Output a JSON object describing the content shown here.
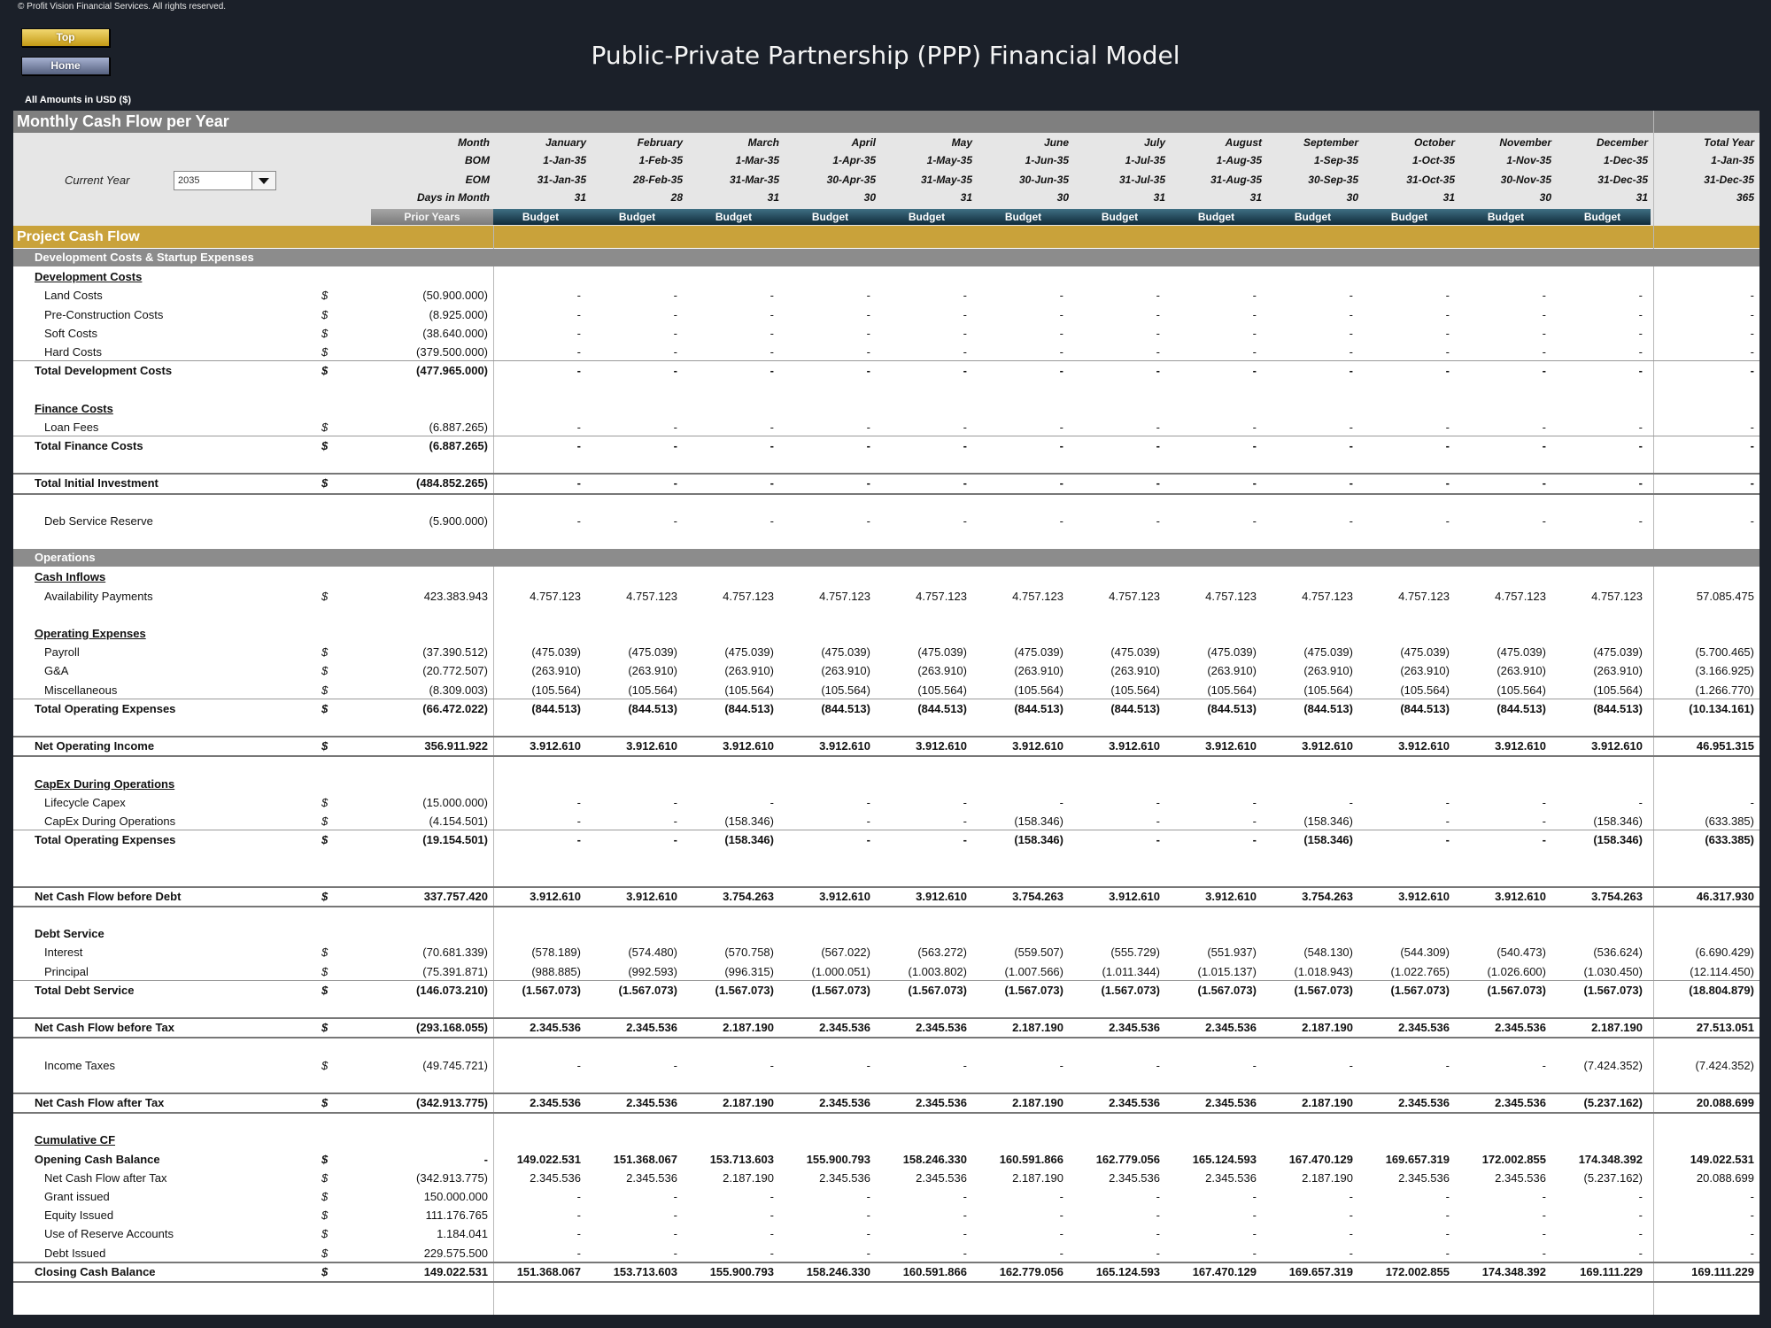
{
  "copyright": "© Profit Vision Financial Services. All rights reserved.",
  "nav": {
    "top_label": "Top",
    "home_label": "Home"
  },
  "title": "Public-Private Partnership (PPP) Financial Model",
  "amounts_note": "All Amounts in  USD ($)",
  "section_title": "Monthly Cash Flow per Year",
  "current_year_label": "Current Year",
  "current_year_value": "2035",
  "header_labels": [
    "Month",
    "BOM",
    "EOM",
    "Days in Month"
  ],
  "prior_years_label": "Prior Years",
  "months": [
    {
      "name": "January",
      "bom": "1-Jan-35",
      "eom": "31-Jan-35",
      "days": "31",
      "type": "Budget"
    },
    {
      "name": "February",
      "bom": "1-Feb-35",
      "eom": "28-Feb-35",
      "days": "28",
      "type": "Budget"
    },
    {
      "name": "March",
      "bom": "1-Mar-35",
      "eom": "31-Mar-35",
      "days": "31",
      "type": "Budget"
    },
    {
      "name": "April",
      "bom": "1-Apr-35",
      "eom": "30-Apr-35",
      "days": "30",
      "type": "Budget"
    },
    {
      "name": "May",
      "bom": "1-May-35",
      "eom": "31-May-35",
      "days": "31",
      "type": "Budget"
    },
    {
      "name": "June",
      "bom": "1-Jun-35",
      "eom": "30-Jun-35",
      "days": "30",
      "type": "Budget"
    },
    {
      "name": "July",
      "bom": "1-Jul-35",
      "eom": "31-Jul-35",
      "days": "31",
      "type": "Budget"
    },
    {
      "name": "August",
      "bom": "1-Aug-35",
      "eom": "31-Aug-35",
      "days": "31",
      "type": "Budget"
    },
    {
      "name": "September",
      "bom": "1-Sep-35",
      "eom": "30-Sep-35",
      "days": "30",
      "type": "Budget"
    },
    {
      "name": "October",
      "bom": "1-Oct-35",
      "eom": "31-Oct-35",
      "days": "31",
      "type": "Budget"
    },
    {
      "name": "November",
      "bom": "1-Nov-35",
      "eom": "30-Nov-35",
      "days": "30",
      "type": "Budget"
    },
    {
      "name": "December",
      "bom": "1-Dec-35",
      "eom": "31-Dec-35",
      "days": "31",
      "type": "Budget"
    }
  ],
  "total_year": {
    "name": "Total Year",
    "bom": "1-Jan-35",
    "eom": "31-Dec-35",
    "days": "365"
  },
  "project_cash_flow_title": "Project Cash Flow",
  "rows": [
    {
      "kind": "gray",
      "label": "Development Costs & Startup Expenses"
    },
    {
      "kind": "heading",
      "label": "Development Costs"
    },
    {
      "kind": "item",
      "label": "Land Costs",
      "cur": "$",
      "prior": "(50.900.000)",
      "vals": [
        "-",
        "-",
        "-",
        "-",
        "-",
        "-",
        "-",
        "-",
        "-",
        "-",
        "-",
        "-"
      ],
      "total": "-"
    },
    {
      "kind": "item",
      "label": "Pre-Construction Costs",
      "cur": "$",
      "prior": "(8.925.000)",
      "vals": [
        "-",
        "-",
        "-",
        "-",
        "-",
        "-",
        "-",
        "-",
        "-",
        "-",
        "-",
        "-"
      ],
      "total": "-"
    },
    {
      "kind": "item",
      "label": "Soft Costs",
      "cur": "$",
      "prior": "(38.640.000)",
      "vals": [
        "-",
        "-",
        "-",
        "-",
        "-",
        "-",
        "-",
        "-",
        "-",
        "-",
        "-",
        "-"
      ],
      "total": "-"
    },
    {
      "kind": "item",
      "label": "Hard Costs",
      "cur": "$",
      "prior": "(379.500.000)",
      "vals": [
        "-",
        "-",
        "-",
        "-",
        "-",
        "-",
        "-",
        "-",
        "-",
        "-",
        "-",
        "-"
      ],
      "total": "-"
    },
    {
      "kind": "total",
      "label": "Total Development Costs",
      "cur": "$",
      "prior": "(477.965.000)",
      "vals": [
        "-",
        "-",
        "-",
        "-",
        "-",
        "-",
        "-",
        "-",
        "-",
        "-",
        "-",
        "-"
      ],
      "total": "-"
    },
    {
      "kind": "spacer"
    },
    {
      "kind": "heading",
      "label": "Finance Costs"
    },
    {
      "kind": "item",
      "label": "Loan Fees",
      "cur": "$",
      "prior": "(6.887.265)",
      "vals": [
        "-",
        "-",
        "-",
        "-",
        "-",
        "-",
        "-",
        "-",
        "-",
        "-",
        "-",
        "-"
      ],
      "total": "-"
    },
    {
      "kind": "total",
      "label": "Total Finance Costs",
      "cur": "$",
      "prior": "(6.887.265)",
      "vals": [
        "-",
        "-",
        "-",
        "-",
        "-",
        "-",
        "-",
        "-",
        "-",
        "-",
        "-",
        "-"
      ],
      "total": "-"
    },
    {
      "kind": "spacer"
    },
    {
      "kind": "total",
      "label": "Total Initial Investment",
      "cur": "$",
      "prior": "(484.852.265)",
      "vals": [
        "-",
        "-",
        "-",
        "-",
        "-",
        "-",
        "-",
        "-",
        "-",
        "-",
        "-",
        "-"
      ],
      "total": "-",
      "double": true
    },
    {
      "kind": "spacer"
    },
    {
      "kind": "item",
      "label": "Deb Service Reserve",
      "cur": "",
      "prior": "(5.900.000)",
      "vals": [
        "-",
        "-",
        "-",
        "-",
        "-",
        "-",
        "-",
        "-",
        "-",
        "-",
        "-",
        "-"
      ],
      "total": "-"
    },
    {
      "kind": "spacer"
    },
    {
      "kind": "gray",
      "label": "Operations"
    },
    {
      "kind": "heading",
      "label": "Cash Inflows"
    },
    {
      "kind": "item",
      "label": "Availability Payments",
      "cur": "$",
      "prior": "423.383.943",
      "vals": [
        "4.757.123",
        "4.757.123",
        "4.757.123",
        "4.757.123",
        "4.757.123",
        "4.757.123",
        "4.757.123",
        "4.757.123",
        "4.757.123",
        "4.757.123",
        "4.757.123",
        "4.757.123"
      ],
      "total": "57.085.475"
    },
    {
      "kind": "spacer"
    },
    {
      "kind": "heading",
      "label": "Operating Expenses"
    },
    {
      "kind": "item",
      "label": "Payroll",
      "cur": "$",
      "prior": "(37.390.512)",
      "vals": [
        "(475.039)",
        "(475.039)",
        "(475.039)",
        "(475.039)",
        "(475.039)",
        "(475.039)",
        "(475.039)",
        "(475.039)",
        "(475.039)",
        "(475.039)",
        "(475.039)",
        "(475.039)"
      ],
      "total": "(5.700.465)"
    },
    {
      "kind": "item",
      "label": "G&A",
      "cur": "$",
      "prior": "(20.772.507)",
      "vals": [
        "(263.910)",
        "(263.910)",
        "(263.910)",
        "(263.910)",
        "(263.910)",
        "(263.910)",
        "(263.910)",
        "(263.910)",
        "(263.910)",
        "(263.910)",
        "(263.910)",
        "(263.910)"
      ],
      "total": "(3.166.925)"
    },
    {
      "kind": "item",
      "label": "Miscellaneous",
      "cur": "$",
      "prior": "(8.309.003)",
      "vals": [
        "(105.564)",
        "(105.564)",
        "(105.564)",
        "(105.564)",
        "(105.564)",
        "(105.564)",
        "(105.564)",
        "(105.564)",
        "(105.564)",
        "(105.564)",
        "(105.564)",
        "(105.564)"
      ],
      "total": "(1.266.770)"
    },
    {
      "kind": "total",
      "label": "Total Operating Expenses",
      "cur": "$",
      "prior": "(66.472.022)",
      "vals": [
        "(844.513)",
        "(844.513)",
        "(844.513)",
        "(844.513)",
        "(844.513)",
        "(844.513)",
        "(844.513)",
        "(844.513)",
        "(844.513)",
        "(844.513)",
        "(844.513)",
        "(844.513)"
      ],
      "total": "(10.134.161)"
    },
    {
      "kind": "spacer"
    },
    {
      "kind": "total",
      "label": "Net Operating Income",
      "cur": "$",
      "prior": "356.911.922",
      "vals": [
        "3.912.610",
        "3.912.610",
        "3.912.610",
        "3.912.610",
        "3.912.610",
        "3.912.610",
        "3.912.610",
        "3.912.610",
        "3.912.610",
        "3.912.610",
        "3.912.610",
        "3.912.610"
      ],
      "total": "46.951.315",
      "double": true
    },
    {
      "kind": "spacer"
    },
    {
      "kind": "heading",
      "label": "CapEx During Operations"
    },
    {
      "kind": "item",
      "label": "Lifecycle Capex",
      "cur": "$",
      "prior": "(15.000.000)",
      "vals": [
        "-",
        "-",
        "-",
        "-",
        "-",
        "-",
        "-",
        "-",
        "-",
        "-",
        "-",
        "-"
      ],
      "total": "-"
    },
    {
      "kind": "item",
      "label": "CapEx During Operations",
      "cur": "$",
      "prior": "(4.154.501)",
      "vals": [
        "-",
        "-",
        "(158.346)",
        "-",
        "-",
        "(158.346)",
        "-",
        "-",
        "(158.346)",
        "-",
        "-",
        "(158.346)"
      ],
      "total": "(633.385)"
    },
    {
      "kind": "total",
      "label": "Total Operating Expenses",
      "cur": "$",
      "prior": "(19.154.501)",
      "vals": [
        "-",
        "-",
        "(158.346)",
        "-",
        "-",
        "(158.346)",
        "-",
        "-",
        "(158.346)",
        "-",
        "-",
        "(158.346)"
      ],
      "total": "(633.385)"
    },
    {
      "kind": "spacer"
    },
    {
      "kind": "spacer"
    },
    {
      "kind": "total",
      "label": "Net Cash Flow before Debt",
      "cur": "$",
      "prior": "337.757.420",
      "vals": [
        "3.912.610",
        "3.912.610",
        "3.754.263",
        "3.912.610",
        "3.912.610",
        "3.754.263",
        "3.912.610",
        "3.912.610",
        "3.754.263",
        "3.912.610",
        "3.912.610",
        "3.754.263"
      ],
      "total": "46.317.930",
      "double": true
    },
    {
      "kind": "spacer"
    },
    {
      "kind": "heading2",
      "label": "Debt Service"
    },
    {
      "kind": "item",
      "label": "Interest",
      "cur": "$",
      "prior": "(70.681.339)",
      "vals": [
        "(578.189)",
        "(574.480)",
        "(570.758)",
        "(567.022)",
        "(563.272)",
        "(559.507)",
        "(555.729)",
        "(551.937)",
        "(548.130)",
        "(544.309)",
        "(540.473)",
        "(536.624)"
      ],
      "total": "(6.690.429)"
    },
    {
      "kind": "item",
      "label": "Principal",
      "cur": "$",
      "prior": "(75.391.871)",
      "vals": [
        "(988.885)",
        "(992.593)",
        "(996.315)",
        "(1.000.051)",
        "(1.003.802)",
        "(1.007.566)",
        "(1.011.344)",
        "(1.015.137)",
        "(1.018.943)",
        "(1.022.765)",
        "(1.026.600)",
        "(1.030.450)"
      ],
      "total": "(12.114.450)"
    },
    {
      "kind": "total",
      "label": "Total Debt Service",
      "cur": "$",
      "prior": "(146.073.210)",
      "vals": [
        "(1.567.073)",
        "(1.567.073)",
        "(1.567.073)",
        "(1.567.073)",
        "(1.567.073)",
        "(1.567.073)",
        "(1.567.073)",
        "(1.567.073)",
        "(1.567.073)",
        "(1.567.073)",
        "(1.567.073)",
        "(1.567.073)"
      ],
      "total": "(18.804.879)"
    },
    {
      "kind": "spacer"
    },
    {
      "kind": "total",
      "label": "Net Cash Flow before Tax",
      "cur": "$",
      "prior": "(293.168.055)",
      "vals": [
        "2.345.536",
        "2.345.536",
        "2.187.190",
        "2.345.536",
        "2.345.536",
        "2.187.190",
        "2.345.536",
        "2.345.536",
        "2.187.190",
        "2.345.536",
        "2.345.536",
        "2.187.190"
      ],
      "total": "27.513.051",
      "double": true
    },
    {
      "kind": "spacer"
    },
    {
      "kind": "item",
      "label": "Income Taxes",
      "cur": "$",
      "prior": "(49.745.721)",
      "vals": [
        "-",
        "-",
        "-",
        "-",
        "-",
        "-",
        "-",
        "-",
        "-",
        "-",
        "-",
        "(7.424.352)"
      ],
      "total": "(7.424.352)"
    },
    {
      "kind": "spacer"
    },
    {
      "kind": "total",
      "label": "Net Cash Flow after Tax",
      "cur": "$",
      "prior": "(342.913.775)",
      "vals": [
        "2.345.536",
        "2.345.536",
        "2.187.190",
        "2.345.536",
        "2.345.536",
        "2.187.190",
        "2.345.536",
        "2.345.536",
        "2.187.190",
        "2.345.536",
        "2.345.536",
        "(5.237.162)"
      ],
      "total": "20.088.699",
      "double": true
    },
    {
      "kind": "spacer"
    },
    {
      "kind": "heading",
      "label": "Cumulative CF"
    },
    {
      "kind": "item",
      "label": "Opening Cash Balance",
      "cur": "$",
      "prior": "-",
      "vals": [
        "149.022.531",
        "151.368.067",
        "153.713.603",
        "155.900.793",
        "158.246.330",
        "160.591.866",
        "162.779.056",
        "165.124.593",
        "167.470.129",
        "169.657.319",
        "172.002.855",
        "174.348.392"
      ],
      "total": "149.022.531",
      "boldrow": true
    },
    {
      "kind": "item",
      "label": "Net Cash Flow after Tax",
      "cur": "$",
      "prior": "(342.913.775)",
      "vals": [
        "2.345.536",
        "2.345.536",
        "2.187.190",
        "2.345.536",
        "2.345.536",
        "2.187.190",
        "2.345.536",
        "2.345.536",
        "2.187.190",
        "2.345.536",
        "2.345.536",
        "(5.237.162)"
      ],
      "total": "20.088.699"
    },
    {
      "kind": "item",
      "label": "Grant issued",
      "cur": "$",
      "prior": "150.000.000",
      "vals": [
        "-",
        "-",
        "-",
        "-",
        "-",
        "-",
        "-",
        "-",
        "-",
        "-",
        "-",
        "-"
      ],
      "total": "-"
    },
    {
      "kind": "item",
      "label": "Equity Issued",
      "cur": "$",
      "prior": "111.176.765",
      "vals": [
        "-",
        "-",
        "-",
        "-",
        "-",
        "-",
        "-",
        "-",
        "-",
        "-",
        "-",
        "-"
      ],
      "total": "-"
    },
    {
      "kind": "item",
      "label": "Use of Reserve Accounts",
      "cur": "$",
      "prior": "1.184.041",
      "vals": [
        "-",
        "-",
        "-",
        "-",
        "-",
        "-",
        "-",
        "-",
        "-",
        "-",
        "-",
        "-"
      ],
      "total": "-"
    },
    {
      "kind": "item",
      "label": "Debt Issued",
      "cur": "$",
      "prior": "229.575.500",
      "vals": [
        "-",
        "-",
        "-",
        "-",
        "-",
        "-",
        "-",
        "-",
        "-",
        "-",
        "-",
        "-"
      ],
      "total": "-"
    },
    {
      "kind": "total",
      "label": "Closing Cash Balance",
      "cur": "$",
      "prior": "149.022.531",
      "vals": [
        "151.368.067",
        "153.713.603",
        "155.900.793",
        "158.246.330",
        "160.591.866",
        "162.779.056",
        "165.124.593",
        "167.470.129",
        "169.657.319",
        "172.002.855",
        "174.348.392",
        "169.111.229"
      ],
      "total": "169.111.229",
      "double": true
    }
  ]
}
